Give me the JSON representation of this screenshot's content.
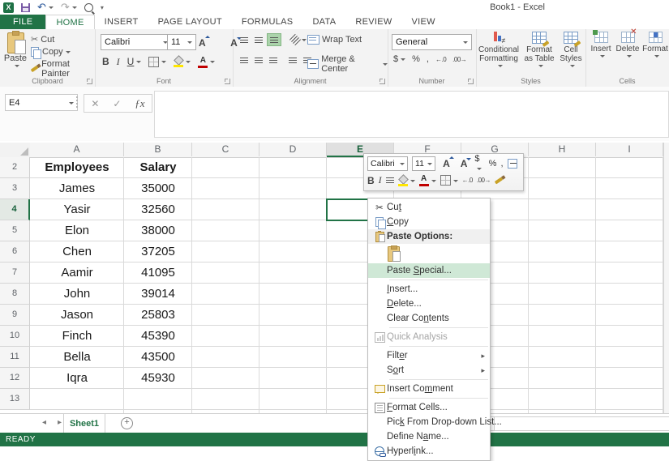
{
  "title_bar": {
    "title": "Book1 - Excel"
  },
  "colors": {
    "accent_green": "#217346",
    "selection_border": "#217346",
    "menu_highlight": "#cfe8d6",
    "fill_yellow": "#ffe600",
    "font_red": "#c00000",
    "undo_blue": "#2b579a",
    "save_purple": "#7a5ba6",
    "clipboard_tan": "#e8c87e"
  },
  "icons": {
    "excel": "X",
    "undo": "↶",
    "redo": "↷",
    "scissors": "✂",
    "close": "✕",
    "check": "✓",
    "fx": "ƒx",
    "grow_font": "A",
    "shrink_font": "A",
    "submenu": "▸",
    "prev_sheet": "◂",
    "next_sheet": "▸",
    "scroll_left": "◄",
    "add_sheet": "+",
    "not_equal": "≠",
    "inc_decimal": "←.0",
    "dec_decimal": ".00→"
  },
  "ribbon_tabs": [
    {
      "label": "FILE",
      "active": false
    },
    {
      "label": "HOME",
      "active": true
    },
    {
      "label": "INSERT",
      "active": false
    },
    {
      "label": "PAGE LAYOUT",
      "active": false
    },
    {
      "label": "FORMULAS",
      "active": false
    },
    {
      "label": "DATA",
      "active": false
    },
    {
      "label": "REVIEW",
      "active": false
    },
    {
      "label": "VIEW",
      "active": false
    }
  ],
  "ribbon": {
    "clipboard": {
      "label": "Clipboard",
      "paste": "Paste",
      "cut": "Cut",
      "copy": "Copy",
      "format_painter": "Format Painter"
    },
    "font": {
      "label": "Font",
      "family": "Calibri",
      "size": "11",
      "bold": "B",
      "italic": "I",
      "underline": "U"
    },
    "alignment": {
      "label": "Alignment",
      "wrap_text": "Wrap Text",
      "merge_center": "Merge & Center"
    },
    "number": {
      "label": "Number",
      "format": "General",
      "currency": "$",
      "percent": "%",
      "comma": ","
    },
    "styles": {
      "label": "Styles",
      "conditional_formatting": "Conditional Formatting",
      "format_as_table": "Format as Table",
      "cell_styles": "Cell Styles"
    },
    "cells": {
      "label": "Cells",
      "insert": "Insert",
      "delete": "Delete",
      "format": "Format"
    }
  },
  "formula_bar": {
    "name_box": "E4"
  },
  "sheet": {
    "columns": [
      "A",
      "B",
      "C",
      "D",
      "E",
      "F",
      "G",
      "H",
      "I"
    ],
    "selected_column": "E",
    "selected_row": 4,
    "selected_cell": "E4",
    "rows": [
      {
        "n": 2,
        "bold": true,
        "cells": {
          "A": "Employees",
          "B": "Salary"
        }
      },
      {
        "n": 3,
        "cells": {
          "A": "James",
          "B": "35000"
        }
      },
      {
        "n": 4,
        "cells": {
          "A": "Yasir",
          "B": "32560"
        }
      },
      {
        "n": 5,
        "cells": {
          "A": "Elon",
          "B": "38000"
        }
      },
      {
        "n": 6,
        "cells": {
          "A": "Chen",
          "B": "37205"
        }
      },
      {
        "n": 7,
        "cells": {
          "A": "Aamir",
          "B": "41095"
        }
      },
      {
        "n": 8,
        "cells": {
          "A": "John",
          "B": "39014"
        }
      },
      {
        "n": 9,
        "cells": {
          "A": "Jason",
          "B": "25803"
        }
      },
      {
        "n": 10,
        "cells": {
          "A": "Finch",
          "B": "45390"
        }
      },
      {
        "n": 11,
        "cells": {
          "A": "Bella",
          "B": "43500"
        }
      },
      {
        "n": 12,
        "cells": {
          "A": "Iqra",
          "B": "45930"
        }
      },
      {
        "n": 13,
        "cells": {}
      }
    ]
  },
  "mini_toolbar": {
    "font": "Calibri",
    "size": "11",
    "bold": "B",
    "italic": "I",
    "currency": "$",
    "percent": "%",
    "comma": ","
  },
  "context_menu": {
    "items": [
      {
        "id": "cut",
        "pre": "Cu",
        "key": "t",
        "post": ""
      },
      {
        "id": "copy",
        "pre": "",
        "key": "C",
        "post": "opy"
      },
      {
        "id": "paste-options",
        "pre": "Paste Options:",
        "key": "",
        "post": ""
      },
      {
        "id": "paste-icon-row"
      },
      {
        "id": "paste-special",
        "pre": "Paste ",
        "key": "S",
        "post": "pecial...",
        "highlighted": true
      },
      {
        "sep": true
      },
      {
        "id": "insert",
        "pre": "",
        "key": "I",
        "post": "nsert..."
      },
      {
        "id": "delete",
        "pre": "",
        "key": "D",
        "post": "elete..."
      },
      {
        "id": "clear-contents",
        "pre": "Clear Co",
        "key": "n",
        "post": "tents"
      },
      {
        "sep": true
      },
      {
        "id": "quick-analysis",
        "pre": "Quick Analysis",
        "key": "",
        "post": "",
        "disabled": true
      },
      {
        "sep": true
      },
      {
        "id": "filter",
        "pre": "Filt",
        "key": "e",
        "post": "r",
        "submenu": true
      },
      {
        "id": "sort",
        "pre": "S",
        "key": "o",
        "post": "rt",
        "submenu": true
      },
      {
        "sep": true
      },
      {
        "id": "insert-comment",
        "pre": "Insert Co",
        "key": "m",
        "post": "ment"
      },
      {
        "sep": true
      },
      {
        "id": "format-cells",
        "pre": "",
        "key": "F",
        "post": "ormat Cells..."
      },
      {
        "id": "pick-list",
        "pre": "Pic",
        "key": "k",
        "post": " From Drop-down List..."
      },
      {
        "id": "define-name",
        "pre": "Define N",
        "key": "a",
        "post": "me..."
      },
      {
        "id": "hyperlink",
        "pre": "Hyperl",
        "key": "i",
        "post": "nk..."
      }
    ]
  },
  "sheet_tabs": {
    "active": "Sheet1"
  },
  "status_bar": {
    "mode": "READY"
  }
}
